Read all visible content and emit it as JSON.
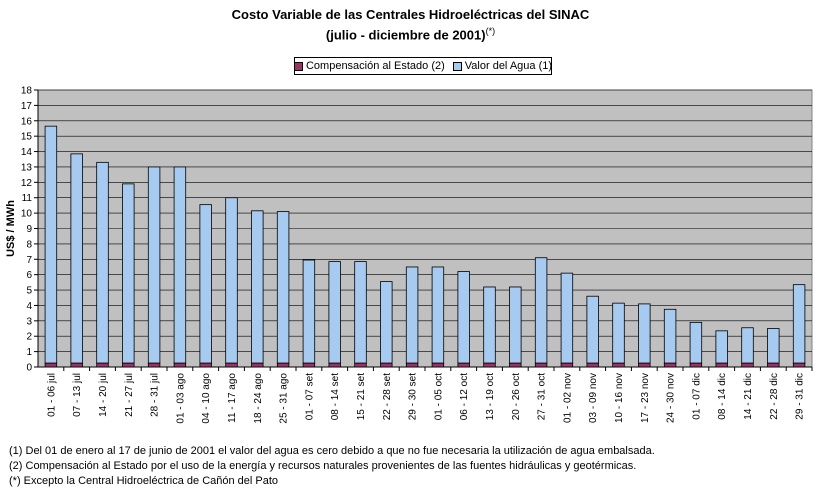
{
  "title_line1": "Costo Variable de las Centrales Hidroeléctricas del SINAC",
  "title_line2": "(julio - diciembre de 2001)",
  "title_sup": "(*)",
  "legend": {
    "item1": "Compensación al Estado (2)",
    "item2": "Valor del Agua (1)"
  },
  "colors": {
    "plot_bg": "#c0c0c0",
    "valor_agua": "#a6caf0",
    "compensacion": "#993366"
  },
  "notes": {
    "n1": "(1) Del 01 de enero al 17 de junio de 2001 el valor del agua es cero debido a que no fue necesaria la utilización de agua embalsada.",
    "n2": "(2) Compensación al Estado por el uso de la energía y recursos naturales provenientes de las fuentes hidráulicas y geotérmicas.",
    "n3": "(*) Excepto la Central Hidroeléctrica de Cañón del Pato"
  },
  "chart_data": {
    "type": "bar",
    "stacked": true,
    "ylabel": "US$ / MWh",
    "xlabel": "",
    "ylim": [
      0,
      18
    ],
    "yticks": [
      0,
      1,
      2,
      3,
      4,
      5,
      6,
      7,
      8,
      9,
      10,
      11,
      12,
      13,
      14,
      15,
      16,
      17,
      18
    ],
    "grid": true,
    "legend_position": "top-center",
    "categories": [
      "01 - 06 jul",
      "07 - 13 jul",
      "14 - 20 jul",
      "21 - 27 jul",
      "28 - 31 jul",
      "01 - 03 ago",
      "04 - 10 ago",
      "11 - 17 ago",
      "18 - 24 ago",
      "25 - 31 ago",
      "01 - 07 set",
      "08 - 14 set",
      "15 - 21 set",
      "22 - 28 set",
      "29 - 30 set",
      "01 - 05 oct",
      "06 - 12 oct",
      "13 - 19 oct",
      "20 - 26 oct",
      "27 - 31 oct",
      "01 - 02 nov",
      "03 - 09 nov",
      "10 - 16 nov",
      "17 - 23 nov",
      "24 - 30 nov",
      "01 - 07 dic",
      "08 - 14 dic",
      "14 - 21 dic",
      "22 - 28 dic",
      "29 - 31 dic"
    ],
    "series": [
      {
        "name": "Compensación al Estado (2)",
        "values": [
          0.25,
          0.25,
          0.25,
          0.25,
          0.25,
          0.25,
          0.25,
          0.25,
          0.25,
          0.25,
          0.25,
          0.25,
          0.25,
          0.25,
          0.25,
          0.25,
          0.25,
          0.25,
          0.25,
          0.25,
          0.25,
          0.25,
          0.25,
          0.25,
          0.25,
          0.25,
          0.25,
          0.25,
          0.25,
          0.25
        ]
      },
      {
        "name": "Valor del Agua (1)",
        "values": [
          15.4,
          13.6,
          13.05,
          11.65,
          12.75,
          12.75,
          10.3,
          10.75,
          9.9,
          9.85,
          6.7,
          6.6,
          6.6,
          5.3,
          6.25,
          6.25,
          5.95,
          4.95,
          4.95,
          6.85,
          5.85,
          4.35,
          3.9,
          3.85,
          3.5,
          2.65,
          2.1,
          2.3,
          2.25,
          5.1
        ]
      }
    ]
  }
}
